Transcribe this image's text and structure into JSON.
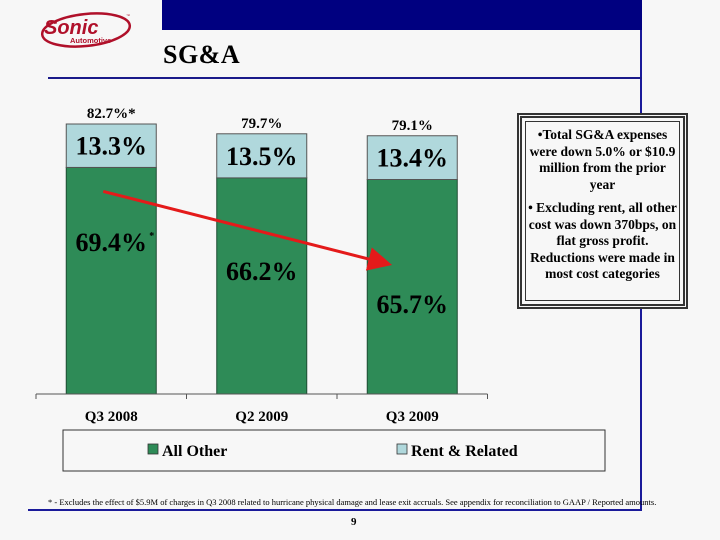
{
  "header": {
    "logo_text": "Sonic",
    "logo_subtext": "Automotive",
    "logo_tm": "™",
    "title": "SG&A"
  },
  "colors": {
    "header_bar": "#000080",
    "all_other": "#2e8b57",
    "rent_related": "#b0d8dc",
    "trend_arrow": "#e41a1a",
    "logo_red": "#b0102a"
  },
  "chart_data": {
    "type": "bar",
    "stacked": true,
    "title": "",
    "xlabel": "",
    "ylabel": "",
    "categories": [
      "Q3 2008",
      "Q2 2009",
      "Q3 2009"
    ],
    "series": [
      {
        "name": "All Other",
        "values": [
          69.4,
          66.2,
          65.7
        ],
        "labels": [
          "69.4%",
          "66.2%",
          "65.7%"
        ],
        "label_asterisk": [
          true,
          false,
          false
        ]
      },
      {
        "name": "Rent & Related",
        "values": [
          13.3,
          13.5,
          13.4
        ],
        "labels": [
          "13.3%",
          "13.5%",
          "13.4%"
        ]
      }
    ],
    "totals": [
      82.7,
      79.7,
      79.1
    ],
    "total_labels": [
      "82.7%*",
      "79.7%",
      "79.1%"
    ],
    "ylim": [
      0,
      82.7
    ],
    "grid": false,
    "legend": {
      "position": "bottom",
      "entries": [
        "All Other",
        "Rent & Related"
      ]
    },
    "annotations": [
      {
        "type": "arrow",
        "description": "downward trend arrow from Q3 2008 All Other to Q3 2009 All Other",
        "from_category": "Q3 2008",
        "to_category": "Q3 2009"
      }
    ]
  },
  "notes": {
    "bullets": [
      "•Total SG&A expenses were down 5.0% or $10.9 million from the prior year",
      "• Excluding rent, all other cost was down 370bps, on flat gross profit.  Reductions were made in most cost categories"
    ]
  },
  "footer": {
    "footnote": "* - Excludes the effect of $5.9M of charges in Q3 2008 related to hurricane physical damage and lease exit accruals.  See appendix for reconciliation to GAAP / Reported amounts.",
    "page_number": "9"
  }
}
